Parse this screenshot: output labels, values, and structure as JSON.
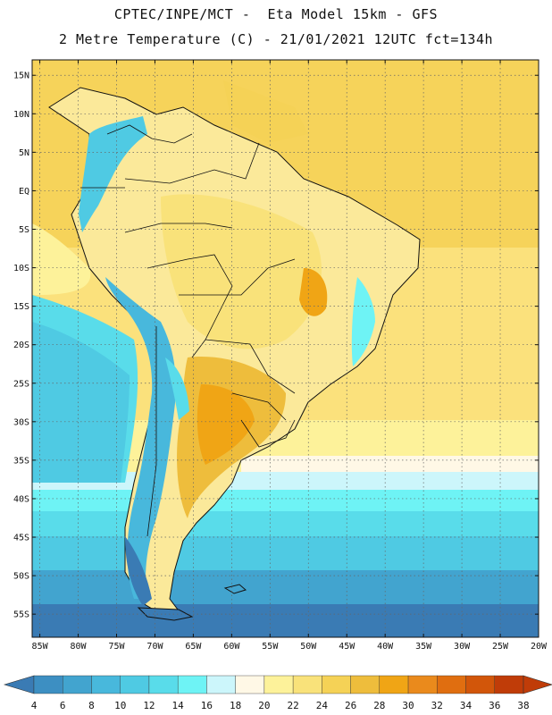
{
  "header": {
    "line1": "CPTEC/INPE/MCT -  Eta Model 15km - GFS",
    "line2": "2 Metre Temperature (C) - 21/01/2021 12UTC fct=134h"
  },
  "map": {
    "lon_range": [
      -86,
      -20
    ],
    "lat_range": [
      -58,
      17
    ],
    "lat_ticks": [
      {
        "v": 15,
        "label": "15N"
      },
      {
        "v": 10,
        "label": "10N"
      },
      {
        "v": 5,
        "label": "5N"
      },
      {
        "v": 0,
        "label": "EQ"
      },
      {
        "v": -5,
        "label": "5S"
      },
      {
        "v": -10,
        "label": "10S"
      },
      {
        "v": -15,
        "label": "15S"
      },
      {
        "v": -20,
        "label": "20S"
      },
      {
        "v": -25,
        "label": "25S"
      },
      {
        "v": -30,
        "label": "30S"
      },
      {
        "v": -35,
        "label": "35S"
      },
      {
        "v": -40,
        "label": "40S"
      },
      {
        "v": -45,
        "label": "45S"
      },
      {
        "v": -50,
        "label": "50S"
      },
      {
        "v": -55,
        "label": "55S"
      }
    ],
    "lon_ticks": [
      {
        "v": -85,
        "label": "85W"
      },
      {
        "v": -80,
        "label": "80W"
      },
      {
        "v": -75,
        "label": "75W"
      },
      {
        "v": -70,
        "label": "70W"
      },
      {
        "v": -65,
        "label": "65W"
      },
      {
        "v": -60,
        "label": "60W"
      },
      {
        "v": -55,
        "label": "55W"
      },
      {
        "v": -50,
        "label": "50W"
      },
      {
        "v": -45,
        "label": "45W"
      },
      {
        "v": -40,
        "label": "40W"
      },
      {
        "v": -35,
        "label": "35W"
      },
      {
        "v": -30,
        "label": "30W"
      },
      {
        "v": -25,
        "label": "25W"
      },
      {
        "v": -20,
        "label": "20W"
      }
    ]
  },
  "colorbar": {
    "labels": [
      "4",
      "6",
      "8",
      "10",
      "12",
      "14",
      "16",
      "18",
      "20",
      "22",
      "24",
      "26",
      "28",
      "30",
      "32",
      "34",
      "36",
      "38"
    ],
    "colors": [
      "#3a7bb4",
      "#3d8fc2",
      "#42a4cf",
      "#48b8dc",
      "#4fcae3",
      "#59dcea",
      "#6ef3f5",
      "#ccf6fb",
      "#fff8e6",
      "#fdf29a",
      "#f9e27a",
      "#f5d256",
      "#eebd3c",
      "#f0a515",
      "#ea8a1c",
      "#e06e10",
      "#d2560a",
      "#c03c08"
    ]
  }
}
